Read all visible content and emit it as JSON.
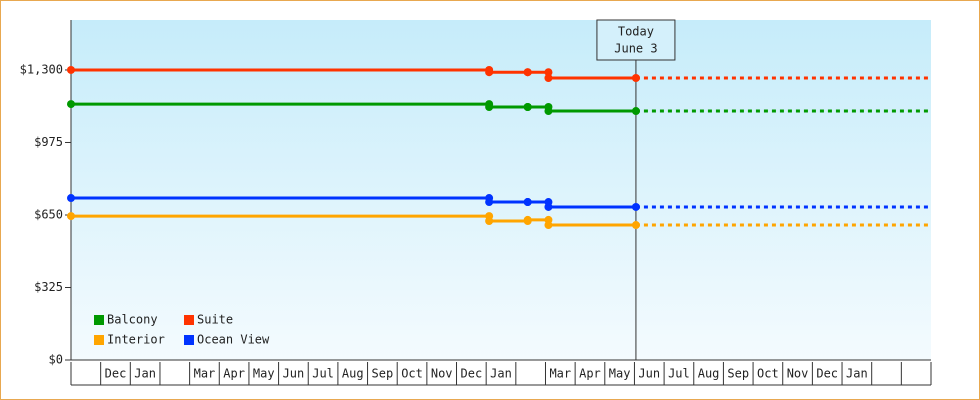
{
  "chart_data": {
    "type": "line",
    "categories": [
      null,
      "Dec",
      "Jan",
      null,
      "Mar",
      "Apr",
      "May",
      "Jun",
      "Jul",
      "Aug",
      "Sep",
      "Oct",
      "Nov",
      "Dec",
      "Jan",
      null,
      "Mar",
      "Apr",
      "May",
      "Jun",
      "Jul",
      "Aug",
      "Sep",
      "Oct",
      "Nov",
      "Dec",
      "Jan",
      null,
      null
    ],
    "x": [
      0,
      14.1,
      14.1,
      15.4,
      15.4,
      16.1,
      16.1,
      19.05
    ],
    "xlim": [
      0,
      29
    ],
    "ylim": [
      0,
      1524
    ],
    "yticks": [
      {
        "value": 0,
        "label": "$0"
      },
      {
        "value": 325,
        "label": "$325"
      },
      {
        "value": 650,
        "label": "$650"
      },
      {
        "value": 975,
        "label": "$975"
      },
      {
        "value": 1300,
        "label": "$1,300"
      }
    ],
    "series": [
      {
        "name": "Balcony",
        "color": "#009900",
        "values": [
          1147,
          1147,
          1134,
          1134,
          1134,
          1134,
          1116,
          1116
        ]
      },
      {
        "name": "Suite",
        "color": "#ff3300",
        "values": [
          1300,
          1300,
          1290,
          1290,
          1290,
          1290,
          1264,
          1264
        ]
      },
      {
        "name": "Interior",
        "color": "#ffa500",
        "values": [
          645,
          645,
          623,
          623,
          628,
          628,
          605,
          605
        ]
      },
      {
        "name": "Ocean View",
        "color": "#0033ff",
        "values": [
          726,
          726,
          708,
          708,
          708,
          708,
          686,
          686
        ]
      }
    ],
    "annotation": {
      "x": 19.05,
      "lines": [
        "Today",
        "June 3"
      ]
    },
    "legend": "lower left"
  }
}
